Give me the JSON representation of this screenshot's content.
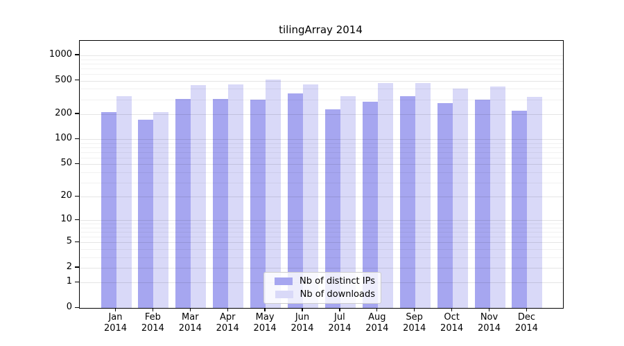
{
  "chart_data": {
    "type": "bar",
    "title": "tilingArray 2014",
    "categories": [
      "Jan",
      "Feb",
      "Mar",
      "Apr",
      "May",
      "Jun",
      "Jul",
      "Aug",
      "Sep",
      "Oct",
      "Nov",
      "Dec"
    ],
    "year_label": "2014",
    "series": [
      {
        "name": "Nb of distinct IPs",
        "color": "#a6a6f0",
        "values": [
          210,
          170,
          305,
          305,
          300,
          355,
          230,
          280,
          325,
          270,
          295,
          220
        ]
      },
      {
        "name": "Nb of downloads",
        "color": "#d9d9f8",
        "values": [
          325,
          210,
          440,
          455,
          520,
          450,
          330,
          465,
          470,
          400,
          425,
          320
        ]
      }
    ],
    "yticks": [
      0,
      1,
      2,
      5,
      10,
      20,
      50,
      100,
      200,
      500,
      1000
    ],
    "scale": "log10(1+x)",
    "ylim": [
      0,
      1490
    ],
    "xlabel": "",
    "ylabel": "",
    "grid": true,
    "legend_position": "bottom-center",
    "colors": {
      "axis": "#000000",
      "background": "#ffffff",
      "grid_major": "rgba(0,0,0,0.10)",
      "grid_minor": "rgba(0,0,0,0.055)",
      "legend_border": "#cccccc"
    }
  }
}
